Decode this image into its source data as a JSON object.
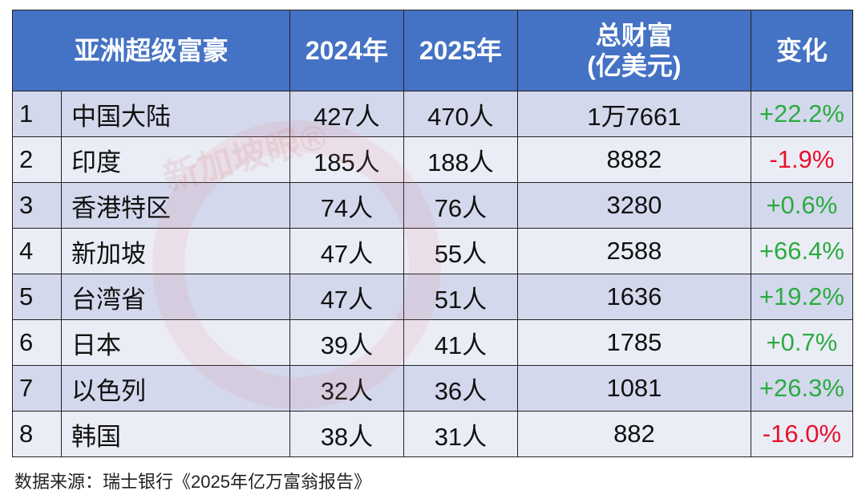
{
  "chart_data": {
    "type": "table",
    "columns": [
      "亚洲超级富豪",
      "2024年",
      "2025年",
      "总财富\n(亿美元)",
      "变化"
    ],
    "header": {
      "title": "亚洲超级富豪",
      "y2024": "2024年",
      "y2025": "2025年",
      "wealth_line1": "总财富",
      "wealth_line2": "(亿美元)",
      "change": "变化"
    },
    "rows": [
      {
        "rank": "1",
        "name": "中国大陆",
        "y2024": "427人",
        "y2025": "470人",
        "wealth": "1万7661",
        "change": "+22.2%"
      },
      {
        "rank": "2",
        "name": "印度",
        "y2024": "185人",
        "y2025": "188人",
        "wealth": "8882",
        "change": "-1.9%"
      },
      {
        "rank": "3",
        "name": "香港特区",
        "y2024": "74人",
        "y2025": "76人",
        "wealth": "3280",
        "change": "+0.6%"
      },
      {
        "rank": "4",
        "name": "新加坡",
        "y2024": "47人",
        "y2025": "55人",
        "wealth": "2588",
        "change": "+66.4%"
      },
      {
        "rank": "5",
        "name": "台湾省",
        "y2024": "47人",
        "y2025": "51人",
        "wealth": "1636",
        "change": "+19.2%"
      },
      {
        "rank": "6",
        "name": "日本",
        "y2024": "39人",
        "y2025": "41人",
        "wealth": "1785",
        "change": "+0.7%"
      },
      {
        "rank": "7",
        "name": "以色列",
        "y2024": "32人",
        "y2025": "36人",
        "wealth": "1081",
        "change": "+26.3%"
      },
      {
        "rank": "8",
        "name": "韩国",
        "y2024": "38人",
        "y2025": "31人",
        "wealth": "882",
        "change": "-16.0%"
      }
    ]
  },
  "source": "数据来源：瑞士银行《2025年亿万富翁报告》",
  "watermark": "新加坡眼®",
  "colors": {
    "header": "#4472c4",
    "row_odd": "#cfd5ea",
    "row_even": "#e9ebf5",
    "positive": "#2bab3f",
    "negative": "#e8112d"
  }
}
